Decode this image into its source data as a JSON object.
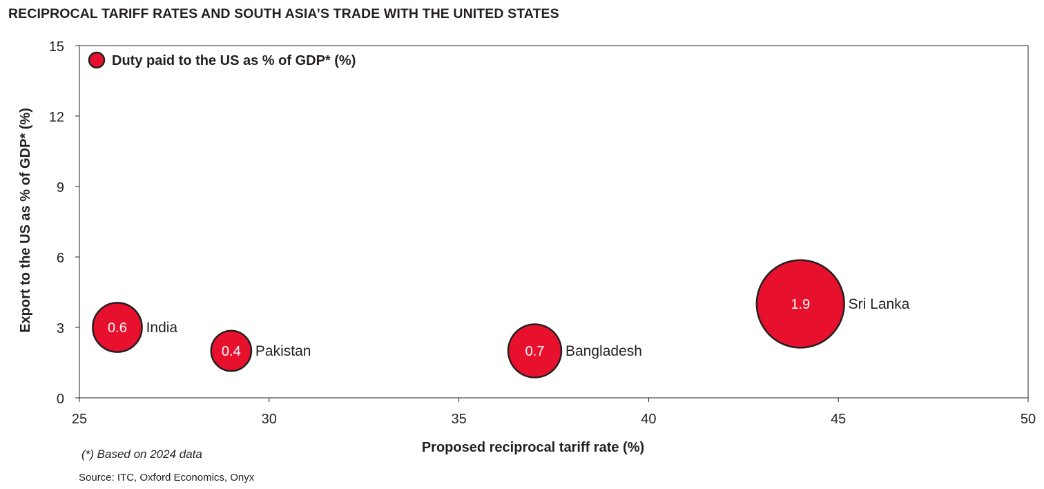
{
  "chart_data": {
    "type": "scatter",
    "title": "RECIPROCAL TARIFF RATES AND SOUTH ASIA’S TRADE WITH THE UNITED STATES",
    "xlabel": "Proposed reciprocal tariff rate (%)",
    "ylabel": "Export to the US as % of GDP* (%)",
    "xlim": [
      25,
      50
    ],
    "ylim": [
      0,
      15
    ],
    "x_ticks": [
      25,
      30,
      35,
      40,
      45,
      50
    ],
    "y_ticks": [
      0,
      3,
      6,
      9,
      12,
      15
    ],
    "grid": false,
    "legend_position": "top-left",
    "series": [
      {
        "name": "Duty paid to the US as % of GDP* (%)",
        "color": "#e8112d",
        "points": [
          {
            "label": "India",
            "x": 26,
            "y": 3,
            "size": 0.6
          },
          {
            "label": "Pakistan",
            "x": 29,
            "y": 2,
            "size": 0.4
          },
          {
            "label": "Bangladesh",
            "x": 37,
            "y": 2,
            "size": 0.7
          },
          {
            "label": "Sri Lanka",
            "x": 44,
            "y": 4,
            "size": 1.9
          }
        ]
      }
    ]
  },
  "footnote": "(*) Based on 2024 data",
  "source": "Source: ITC, Oxford Economics, Onyx"
}
